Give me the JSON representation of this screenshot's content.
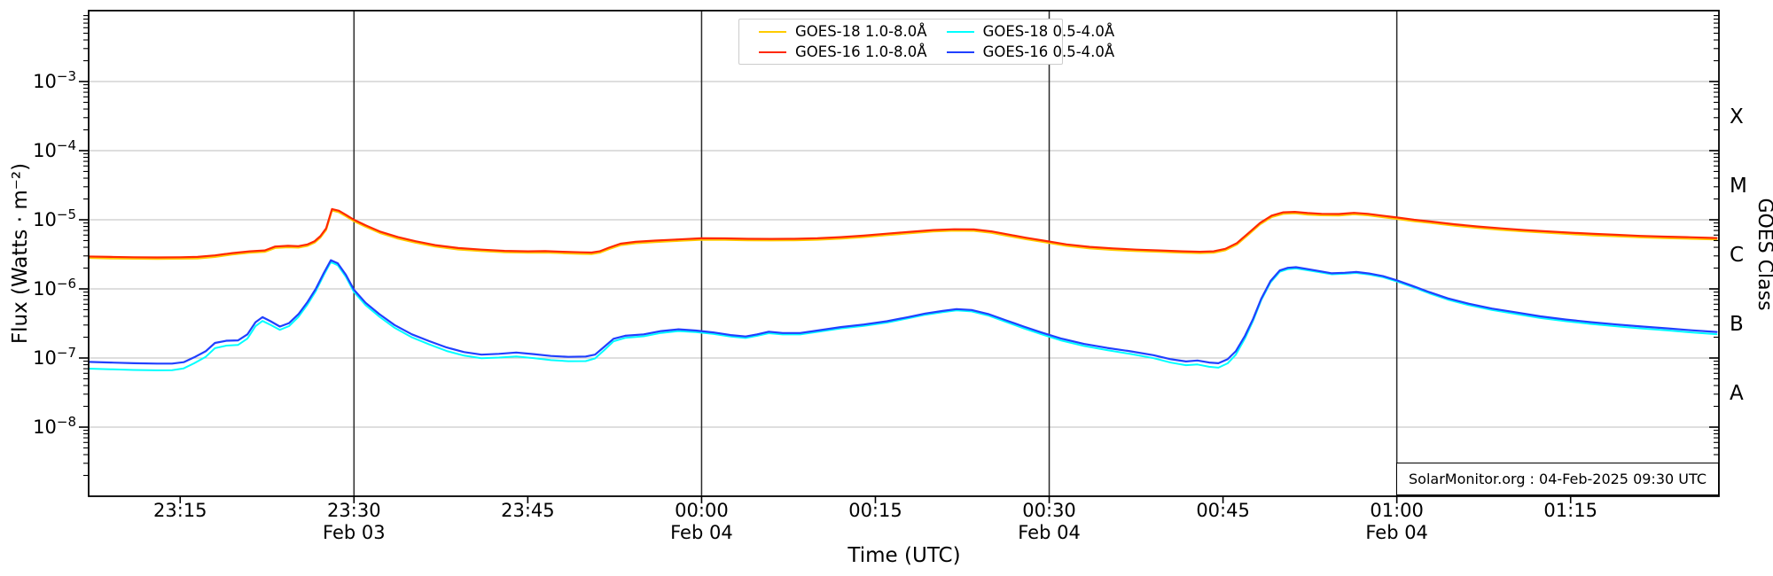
{
  "chart_data": {
    "type": "line",
    "title": "",
    "xlabel": "Time (UTC)",
    "ylabel": "Flux (Watts · m⁻²)",
    "ylabel_right": "GOES Class",
    "x_unit": "minutes after 23:00 UTC 03-Feb-2025",
    "xlim": [
      7.1,
      147.8
    ],
    "ylim": [
      1e-09,
      0.01
    ],
    "grid": {
      "horizontal": "log decades, light gray",
      "vertical": "every 30 min, dark"
    },
    "legend_position": "top center",
    "ytick_exponents": [
      -3,
      -4,
      -5,
      -6,
      -7,
      -8
    ],
    "xticks": [
      {
        "m": 15,
        "label": "23:15"
      },
      {
        "m": 30,
        "label": "23:30",
        "date": "Feb 03"
      },
      {
        "m": 45,
        "label": "23:45"
      },
      {
        "m": 60,
        "label": "00:00",
        "date": "Feb 04"
      },
      {
        "m": 75,
        "label": "00:15"
      },
      {
        "m": 90,
        "label": "00:30",
        "date": "Feb 04"
      },
      {
        "m": 105,
        "label": "00:45"
      },
      {
        "m": 120,
        "label": "01:00",
        "date": "Feb 04"
      },
      {
        "m": 135,
        "label": "01:15"
      }
    ],
    "vgrid_minutes": [
      30,
      60,
      90,
      120
    ],
    "goes_classes": [
      {
        "label": "X",
        "log10_mid": -3.5
      },
      {
        "label": "M",
        "log10_mid": -4.5
      },
      {
        "label": "C",
        "log10_mid": -5.5
      },
      {
        "label": "B",
        "log10_mid": -6.5
      },
      {
        "label": "A",
        "log10_mid": -7.5
      }
    ],
    "watermark": "SolarMonitor.org : 04-Feb-2025 09:30 UTC",
    "series": [
      {
        "id": "goes18_long",
        "label": "GOES-18 1.0-8.0Å",
        "color": "#ffcc00",
        "width": 2,
        "derive_from": "goes16_long",
        "ratio": [
          [
            7,
            0.95
          ],
          [
            147.6,
            0.95
          ]
        ]
      },
      {
        "id": "goes16_long",
        "label": "GOES-16 1.0-8.0Å",
        "color": "#ff2800",
        "width": 2.2,
        "points": [
          [
            7,
            2.95e-06
          ],
          [
            9,
            2.9e-06
          ],
          [
            11,
            2.87e-06
          ],
          [
            13,
            2.85e-06
          ],
          [
            15,
            2.87e-06
          ],
          [
            16.5,
            2.9e-06
          ],
          [
            18,
            3.05e-06
          ],
          [
            19.5,
            3.3e-06
          ],
          [
            21,
            3.5e-06
          ],
          [
            22.3,
            3.6e-06
          ],
          [
            23.2,
            4.1e-06
          ],
          [
            24.3,
            4.2e-06
          ],
          [
            25.2,
            4.15e-06
          ],
          [
            26,
            4.4e-06
          ],
          [
            26.6,
            4.9e-06
          ],
          [
            27.1,
            5.8e-06
          ],
          [
            27.6,
            7.5e-06
          ],
          [
            28.1,
            1.43e-05
          ],
          [
            28.7,
            1.35e-05
          ],
          [
            29.3,
            1.18e-05
          ],
          [
            30,
            1e-05
          ],
          [
            31,
            8.3e-06
          ],
          [
            32.3,
            6.7e-06
          ],
          [
            33.8,
            5.6e-06
          ],
          [
            35.3,
            4.9e-06
          ],
          [
            37,
            4.3e-06
          ],
          [
            39,
            3.9e-06
          ],
          [
            41,
            3.7e-06
          ],
          [
            43,
            3.55e-06
          ],
          [
            45,
            3.5e-06
          ],
          [
            46.5,
            3.52e-06
          ],
          [
            48,
            3.45e-06
          ],
          [
            49.5,
            3.38e-06
          ],
          [
            50.5,
            3.35e-06
          ],
          [
            51.2,
            3.5e-06
          ],
          [
            52,
            3.95e-06
          ],
          [
            53,
            4.5e-06
          ],
          [
            54.3,
            4.8e-06
          ],
          [
            56,
            5e-06
          ],
          [
            58,
            5.2e-06
          ],
          [
            60,
            5.4e-06
          ],
          [
            62,
            5.38e-06
          ],
          [
            64,
            5.3e-06
          ],
          [
            66,
            5.28e-06
          ],
          [
            68,
            5.3e-06
          ],
          [
            70,
            5.4e-06
          ],
          [
            72,
            5.6e-06
          ],
          [
            74,
            5.9e-06
          ],
          [
            76,
            6.3e-06
          ],
          [
            78,
            6.7e-06
          ],
          [
            80,
            7.1e-06
          ],
          [
            81.8,
            7.3e-06
          ],
          [
            83.5,
            7.25e-06
          ],
          [
            85,
            6.8e-06
          ],
          [
            86.5,
            6.1e-06
          ],
          [
            88,
            5.5e-06
          ],
          [
            89.5,
            5e-06
          ],
          [
            91.5,
            4.4e-06
          ],
          [
            93.5,
            4.05e-06
          ],
          [
            95.5,
            3.85e-06
          ],
          [
            97.5,
            3.7e-06
          ],
          [
            99.5,
            3.6e-06
          ],
          [
            101.5,
            3.5e-06
          ],
          [
            103,
            3.45e-06
          ],
          [
            104.2,
            3.5e-06
          ],
          [
            105.2,
            3.8e-06
          ],
          [
            106.2,
            4.6e-06
          ],
          [
            107.2,
            6.4e-06
          ],
          [
            108.2,
            9e-06
          ],
          [
            109.2,
            1.15e-05
          ],
          [
            110.2,
            1.28e-05
          ],
          [
            111.2,
            1.3e-05
          ],
          [
            112.3,
            1.25e-05
          ],
          [
            113.5,
            1.22e-05
          ],
          [
            115,
            1.21e-05
          ],
          [
            116.3,
            1.26e-05
          ],
          [
            117.5,
            1.22e-05
          ],
          [
            118.7,
            1.15e-05
          ],
          [
            120,
            1.08e-05
          ],
          [
            121.5,
            1e-05
          ],
          [
            123,
            9.4e-06
          ],
          [
            125,
            8.6e-06
          ],
          [
            127,
            8e-06
          ],
          [
            129,
            7.5e-06
          ],
          [
            131,
            7.1e-06
          ],
          [
            133,
            6.8e-06
          ],
          [
            135,
            6.5e-06
          ],
          [
            137,
            6.25e-06
          ],
          [
            139,
            6.05e-06
          ],
          [
            141,
            5.85e-06
          ],
          [
            143,
            5.7e-06
          ],
          [
            145,
            5.6e-06
          ],
          [
            147.6,
            5.45e-06
          ]
        ]
      },
      {
        "id": "goes18_short",
        "label": "GOES-18 0.5-4.0Å",
        "color": "#00ffff",
        "width": 2,
        "derive_from": "goes16_short",
        "ratio": [
          [
            7,
            0.8
          ],
          [
            14,
            0.8
          ],
          [
            20,
            0.86
          ],
          [
            24,
            0.9
          ],
          [
            28,
            0.94
          ],
          [
            32,
            0.92
          ],
          [
            38,
            0.89
          ],
          [
            44,
            0.88
          ],
          [
            50,
            0.86
          ],
          [
            53,
            0.93
          ],
          [
            60,
            0.95
          ],
          [
            80,
            0.96
          ],
          [
            95,
            0.93
          ],
          [
            101,
            0.89
          ],
          [
            105,
            0.86
          ],
          [
            108,
            0.95
          ],
          [
            115,
            0.97
          ],
          [
            130,
            0.95
          ],
          [
            147.6,
            0.93
          ]
        ]
      },
      {
        "id": "goes16_short",
        "label": "GOES-16 0.5-4.0Å",
        "color": "#2040ff",
        "width": 2.2,
        "points": [
          [
            7,
            8.8e-08
          ],
          [
            9,
            8.6e-08
          ],
          [
            11,
            8.4e-08
          ],
          [
            13,
            8.3e-08
          ],
          [
            14.3,
            8.3e-08
          ],
          [
            15.3,
            8.7e-08
          ],
          [
            16.2,
            1.02e-07
          ],
          [
            17.2,
            1.25e-07
          ],
          [
            18,
            1.65e-07
          ],
          [
            19,
            1.78e-07
          ],
          [
            20,
            1.8e-07
          ],
          [
            20.8,
            2.2e-07
          ],
          [
            21.5,
            3.3e-07
          ],
          [
            22.1,
            3.9e-07
          ],
          [
            22.8,
            3.4e-07
          ],
          [
            23.6,
            2.85e-07
          ],
          [
            24.4,
            3.2e-07
          ],
          [
            25.2,
            4.3e-07
          ],
          [
            26,
            6.5e-07
          ],
          [
            26.7,
            1e-06
          ],
          [
            27.4,
            1.7e-06
          ],
          [
            28,
            2.6e-06
          ],
          [
            28.6,
            2.35e-06
          ],
          [
            29.3,
            1.6e-06
          ],
          [
            30,
            9.7e-07
          ],
          [
            31,
            6.3e-07
          ],
          [
            32.2,
            4.3e-07
          ],
          [
            33.5,
            3e-07
          ],
          [
            35,
            2.2e-07
          ],
          [
            36.5,
            1.75e-07
          ],
          [
            38,
            1.42e-07
          ],
          [
            39.5,
            1.22e-07
          ],
          [
            41,
            1.12e-07
          ],
          [
            42.5,
            1.15e-07
          ],
          [
            44,
            1.2e-07
          ],
          [
            45.5,
            1.14e-07
          ],
          [
            47,
            1.07e-07
          ],
          [
            48.5,
            1.04e-07
          ],
          [
            50,
            1.05e-07
          ],
          [
            50.8,
            1.12e-07
          ],
          [
            51.6,
            1.45e-07
          ],
          [
            52.4,
            1.9e-07
          ],
          [
            53.4,
            2.1e-07
          ],
          [
            55,
            2.2e-07
          ],
          [
            56.5,
            2.45e-07
          ],
          [
            58,
            2.6e-07
          ],
          [
            59.5,
            2.5e-07
          ],
          [
            61,
            2.35e-07
          ],
          [
            62.5,
            2.15e-07
          ],
          [
            63.8,
            2.05e-07
          ],
          [
            64.8,
            2.2e-07
          ],
          [
            65.8,
            2.4e-07
          ],
          [
            67,
            2.3e-07
          ],
          [
            68.5,
            2.3e-07
          ],
          [
            70,
            2.5e-07
          ],
          [
            72,
            2.8e-07
          ],
          [
            74,
            3.05e-07
          ],
          [
            76,
            3.4e-07
          ],
          [
            77.8,
            3.9e-07
          ],
          [
            79.3,
            4.4e-07
          ],
          [
            80.8,
            4.8e-07
          ],
          [
            82,
            5.1e-07
          ],
          [
            83.3,
            4.95e-07
          ],
          [
            84.8,
            4.3e-07
          ],
          [
            86.3,
            3.5e-07
          ],
          [
            87.8,
            2.85e-07
          ],
          [
            89.3,
            2.35e-07
          ],
          [
            91,
            1.92e-07
          ],
          [
            93,
            1.6e-07
          ],
          [
            95,
            1.4e-07
          ],
          [
            97,
            1.25e-07
          ],
          [
            99,
            1.1e-07
          ],
          [
            100.5,
            9.6e-08
          ],
          [
            101.8,
            8.9e-08
          ],
          [
            102.8,
            9.2e-08
          ],
          [
            103.8,
            8.6e-08
          ],
          [
            104.6,
            8.4e-08
          ],
          [
            105.4,
            9.6e-08
          ],
          [
            106.1,
            1.25e-07
          ],
          [
            106.9,
            2.1e-07
          ],
          [
            107.6,
            3.7e-07
          ],
          [
            108.3,
            7.2e-07
          ],
          [
            109.1,
            1.3e-06
          ],
          [
            109.9,
            1.85e-06
          ],
          [
            110.6,
            2.02e-06
          ],
          [
            111.3,
            2.06e-06
          ],
          [
            112.2,
            1.95e-06
          ],
          [
            113.2,
            1.82e-06
          ],
          [
            114.4,
            1.68e-06
          ],
          [
            115.5,
            1.71e-06
          ],
          [
            116.5,
            1.76e-06
          ],
          [
            117.6,
            1.67e-06
          ],
          [
            118.8,
            1.53e-06
          ],
          [
            120,
            1.33e-06
          ],
          [
            121.4,
            1.1e-06
          ],
          [
            122.8,
            9e-07
          ],
          [
            124.4,
            7.3e-07
          ],
          [
            126.2,
            6.1e-07
          ],
          [
            128.2,
            5.2e-07
          ],
          [
            130.2,
            4.6e-07
          ],
          [
            132.4,
            4e-07
          ],
          [
            134.6,
            3.6e-07
          ],
          [
            136.8,
            3.3e-07
          ],
          [
            139,
            3.05e-07
          ],
          [
            141.2,
            2.85e-07
          ],
          [
            143.4,
            2.68e-07
          ],
          [
            145.4,
            2.52e-07
          ],
          [
            147.6,
            2.38e-07
          ]
        ]
      }
    ],
    "style": {
      "h_grid_color": "#c9c9c9",
      "v_grid_color": "#2a2a2a",
      "spine_color": "#000000",
      "background": "#ffffff"
    }
  }
}
